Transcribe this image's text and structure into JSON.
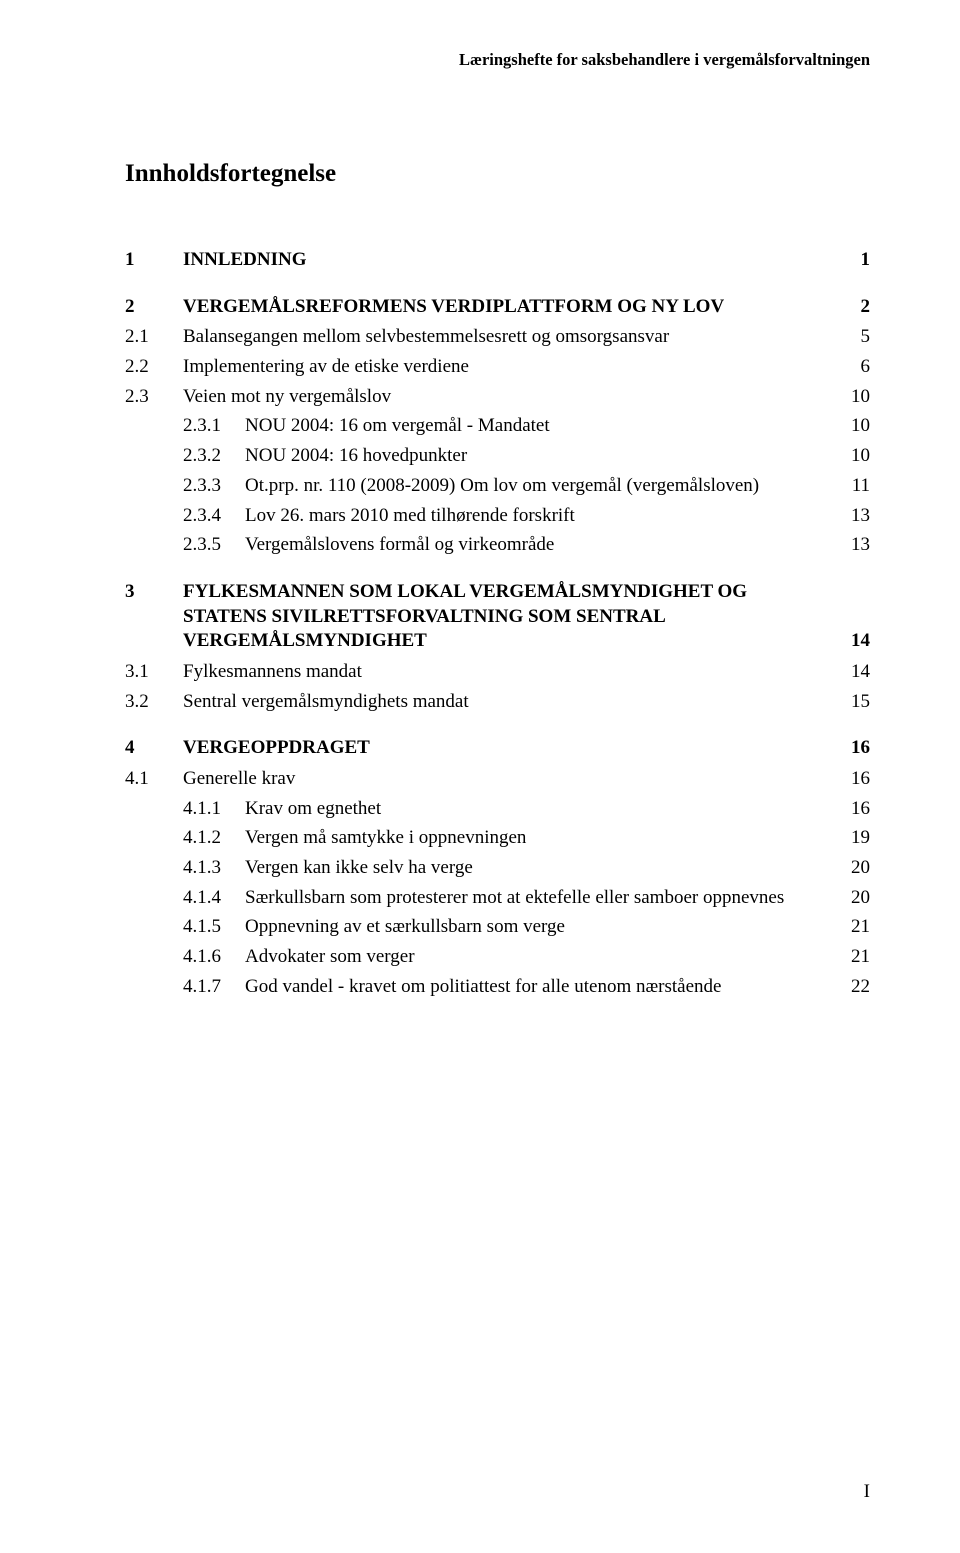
{
  "running_header": "Læringshefte for saksbehandlere i vergemålsforvaltningen",
  "doc_title": "Innholdsfortegnelse",
  "page_roman": "I",
  "toc": [
    {
      "type": "lvl1",
      "num": "1",
      "label": "INNLEDNING",
      "page": "1"
    },
    {
      "type": "lvl1",
      "num": "2",
      "label": "VERGEMÅLSREFORMENS VERDIPLATTFORM OG NY LOV",
      "page": "2"
    },
    {
      "type": "lvl2",
      "num": "2.1",
      "label": "Balansegangen mellom selvbestemmelsesrett og omsorgsansvar",
      "page": "5"
    },
    {
      "type": "lvl2",
      "num": "2.2",
      "label": "Implementering av de etiske verdiene",
      "page": "6"
    },
    {
      "type": "lvl2",
      "num": "2.3",
      "label": "Veien mot ny vergemålslov",
      "page": "10"
    },
    {
      "type": "lvl3",
      "num": "2.3.1",
      "label": "NOU 2004: 16 om vergemål - Mandatet",
      "page": "10"
    },
    {
      "type": "lvl3",
      "num": "2.3.2",
      "label": "NOU 2004: 16 hovedpunkter",
      "page": "10"
    },
    {
      "type": "lvl3",
      "num": "2.3.3",
      "label": "Ot.prp. nr. 110 (2008-2009) Om lov om vergemål (vergemålsloven)",
      "page": "11"
    },
    {
      "type": "lvl3",
      "num": "2.3.4",
      "label": "Lov 26. mars 2010 med tilhørende forskrift",
      "page": "13"
    },
    {
      "type": "lvl3",
      "num": "2.3.5",
      "label": "Vergemålslovens formål og virkeområde",
      "page": "13"
    },
    {
      "type": "lvl1-multi",
      "num": "3",
      "lines": [
        "FYLKESMANNEN SOM LOKAL VERGEMÅLSMYNDIGHET OG",
        "STATENS SIVILRETTSFORVALTNING SOM SENTRAL",
        "VERGEMÅLSMYNDIGHET"
      ],
      "page": "14"
    },
    {
      "type": "lvl2",
      "num": "3.1",
      "label": "Fylkesmannens mandat",
      "page": "14"
    },
    {
      "type": "lvl2",
      "num": "3.2",
      "label": "Sentral vergemålsmyndighets mandat",
      "page": "15"
    },
    {
      "type": "lvl1",
      "num": "4",
      "label": "VERGEOPPDRAGET",
      "page": "16"
    },
    {
      "type": "lvl2",
      "num": "4.1",
      "label": "Generelle krav",
      "page": "16"
    },
    {
      "type": "lvl3",
      "num": "4.1.1",
      "label": "Krav om egnethet",
      "page": "16"
    },
    {
      "type": "lvl3",
      "num": "4.1.2",
      "label": "Vergen må samtykke i oppnevningen",
      "page": "19"
    },
    {
      "type": "lvl3",
      "num": "4.1.3",
      "label": "Vergen kan ikke selv ha verge",
      "page": "20"
    },
    {
      "type": "lvl3",
      "num": "4.1.4",
      "label": "Særkullsbarn som protesterer mot at ektefelle eller samboer oppnevnes",
      "page": "20"
    },
    {
      "type": "lvl3",
      "num": "4.1.5",
      "label": "Oppnevning av et særkullsbarn som verge",
      "page": "21"
    },
    {
      "type": "lvl3",
      "num": "4.1.6",
      "label": "Advokater som verger",
      "page": "21"
    },
    {
      "type": "lvl3",
      "num": "4.1.7",
      "label": "God vandel - kravet om politiattest for alle utenom nærstående",
      "page": "22"
    }
  ]
}
